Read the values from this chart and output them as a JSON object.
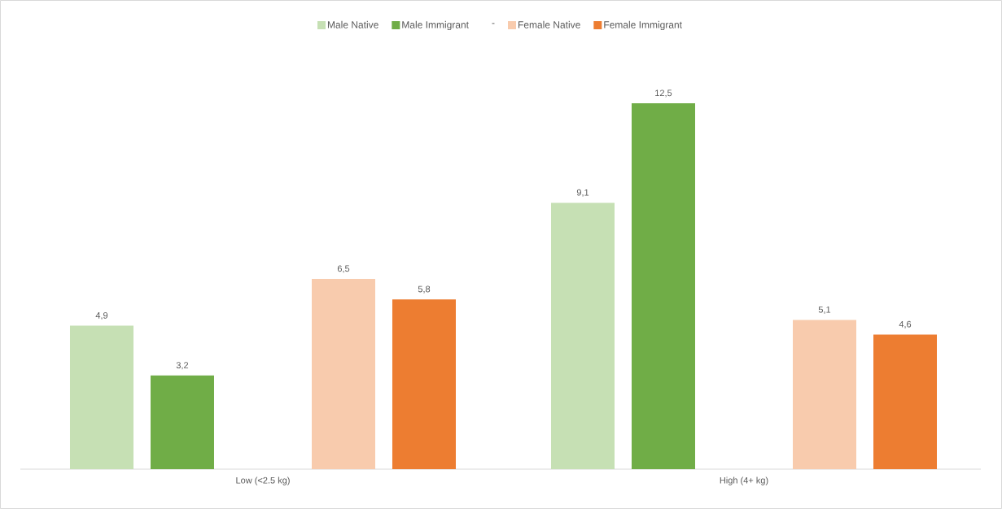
{
  "chart_data": {
    "type": "bar",
    "categories": [
      "Low (<2.5 kg)",
      "High (4+ kg)"
    ],
    "series": [
      {
        "name": "Male Native",
        "color": "#c6e0b4",
        "values": [
          4.9,
          9.1
        ],
        "value_labels": [
          "4,9",
          "9,1"
        ]
      },
      {
        "name": "Male Immigrant",
        "color": "#70ad47",
        "values": [
          3.2,
          12.5
        ],
        "value_labels": [
          "3,2",
          "12,5"
        ]
      },
      {
        "name": "-",
        "values": [
          null,
          null
        ]
      },
      {
        "name": "Female Native",
        "color": "#f8cbad",
        "values": [
          6.5,
          5.1
        ],
        "value_labels": [
          "6,5",
          "5,1"
        ]
      },
      {
        "name": "Female Immigrant",
        "color": "#ed7d31",
        "values": [
          5.8,
          4.6
        ],
        "value_labels": [
          "5,8",
          "4,6"
        ]
      }
    ],
    "legend": "top"
  }
}
